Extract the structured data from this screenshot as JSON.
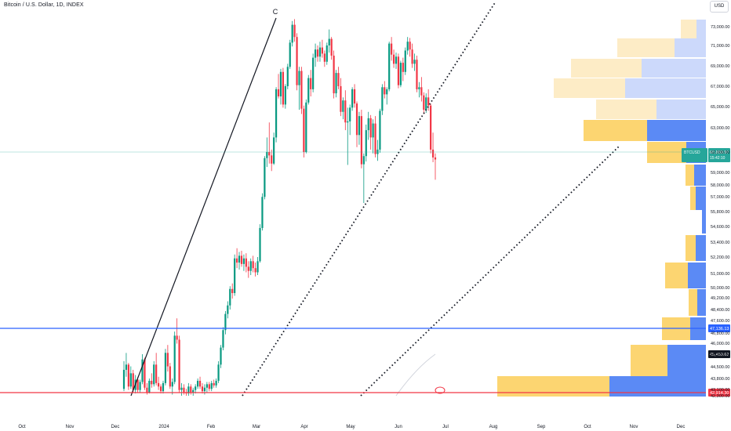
{
  "header": {
    "title": "Bitcoin / U.S. Dollar, 1D, INDEX",
    "currency": "USD"
  },
  "colors": {
    "up": "#089981",
    "down": "#f23645",
    "vp_up": "#fcd571",
    "vp_down": "#5b8af5",
    "vp_up_faded": "#fdecc6",
    "vp_down_faded": "#ccd9fb",
    "blue_line": "#2962ff",
    "red_line": "#f23645",
    "price_line": "#26a69a"
  },
  "chart_data": {
    "type": "candlestick",
    "symbol": "BTCUSD",
    "timeframe": "1D",
    "x_ticks": [
      "Oct",
      "Nov",
      "Dec",
      "2024",
      "Feb",
      "Mar",
      "Apr",
      "May",
      "Jun",
      "Jul",
      "Aug",
      "Sep",
      "Oct",
      "Nov",
      "Dec"
    ],
    "y_ticks": [
      "73,000.00",
      "71,000.00",
      "69,000.00",
      "67,000.00",
      "65,000.00",
      "63,000.00",
      "62,000.00",
      "59,000.00",
      "58,000.00",
      "57,000.00",
      "55,800.00",
      "54,600.00",
      "53,400.00",
      "52,200.00",
      "51,000.00",
      "50,000.00",
      "49,200.00",
      "48,400.00",
      "47,600.00",
      "46,800.00",
      "46,000.00",
      "45,200.00",
      "44,500.00",
      "43,800.00",
      "43,100.00",
      "42,300.00"
    ],
    "ylim": [
      42000,
      74500
    ],
    "last_price": "60,889.97",
    "countdown": "15:42:10",
    "price_label": "BTCUSD",
    "levels": [
      {
        "value": "47,136.13",
        "color": "#2962ff"
      },
      {
        "value": "45,459.62",
        "color": "#131722"
      },
      {
        "value": "42,914.30",
        "color": "#f23645"
      }
    ],
    "wave_label": "C",
    "candles": [
      [
        42900,
        44800,
        42700,
        44300
      ],
      [
        44300,
        45300,
        43900,
        44600
      ],
      [
        44600,
        44700,
        42800,
        43100
      ],
      [
        43100,
        44500,
        42900,
        44100
      ],
      [
        44100,
        44300,
        42600,
        42800
      ],
      [
        42800,
        44000,
        42500,
        43700
      ],
      [
        43700,
        43900,
        42600,
        42800
      ],
      [
        42800,
        43700,
        42600,
        43500
      ],
      [
        43500,
        45200,
        43300,
        44900
      ],
      [
        44900,
        45000,
        42800,
        43000
      ],
      [
        43000,
        43400,
        42400,
        42600
      ],
      [
        42600,
        43800,
        42500,
        43600
      ],
      [
        43600,
        44100,
        43000,
        43300
      ],
      [
        43300,
        44800,
        43100,
        44600
      ],
      [
        44600,
        45300,
        43200,
        43400
      ],
      [
        43400,
        43900,
        42800,
        43100
      ],
      [
        43100,
        43300,
        42500,
        42700
      ],
      [
        42700,
        43600,
        42500,
        43400
      ],
      [
        43400,
        45600,
        43200,
        45300
      ],
      [
        45300,
        45900,
        44200,
        44500
      ],
      [
        44500,
        44700,
        42900,
        43100
      ],
      [
        43100,
        43800,
        42400,
        43500
      ],
      [
        43500,
        46900,
        43300,
        46600
      ],
      [
        46600,
        47800,
        46000,
        46300
      ],
      [
        46300,
        46600,
        42600,
        42800
      ],
      [
        42800,
        43400,
        42200,
        43000
      ],
      [
        43000,
        43300,
        42400,
        42600
      ],
      [
        42600,
        42900,
        42300,
        42500
      ],
      [
        42500,
        43400,
        42300,
        43100
      ],
      [
        43100,
        43300,
        42400,
        42600
      ],
      [
        42600,
        43000,
        42300,
        42800
      ],
      [
        42800,
        43300,
        42500,
        43100
      ],
      [
        43100,
        43800,
        42900,
        43600
      ],
      [
        43600,
        43900,
        42900,
        43100
      ],
      [
        43100,
        43400,
        42500,
        42700
      ],
      [
        42700,
        43300,
        42400,
        43000
      ],
      [
        43000,
        43500,
        42600,
        43300
      ],
      [
        43300,
        43500,
        42700,
        42900
      ],
      [
        42900,
        43600,
        42700,
        43400
      ],
      [
        43400,
        43700,
        43000,
        43200
      ],
      [
        43200,
        43800,
        43000,
        43600
      ],
      [
        43600,
        44800,
        43400,
        44600
      ],
      [
        44600,
        45900,
        44400,
        45700
      ],
      [
        45700,
        47200,
        45500,
        47000
      ],
      [
        47000,
        48300,
        46700,
        48100
      ],
      [
        48100,
        49000,
        47800,
        48700
      ],
      [
        48700,
        50100,
        48400,
        49900
      ],
      [
        49900,
        50300,
        49200,
        49600
      ],
      [
        49600,
        52400,
        49400,
        52100
      ],
      [
        52100,
        52900,
        51400,
        51800
      ],
      [
        51800,
        52600,
        51300,
        52300
      ],
      [
        52300,
        52700,
        51500,
        51700
      ],
      [
        51700,
        52400,
        51200,
        52100
      ],
      [
        52100,
        52500,
        51100,
        51500
      ],
      [
        51500,
        51900,
        50700,
        51200
      ],
      [
        51200,
        52100,
        50900,
        51900
      ],
      [
        51900,
        52300,
        51100,
        51400
      ],
      [
        51400,
        51800,
        50800,
        51100
      ],
      [
        51100,
        52200,
        50900,
        51900
      ],
      [
        51900,
        54800,
        51800,
        54500
      ],
      [
        54500,
        57300,
        54300,
        57000
      ],
      [
        57000,
        61400,
        56800,
        61100
      ],
      [
        61100,
        62600,
        59800,
        62000
      ],
      [
        62000,
        63500,
        60300,
        61500
      ],
      [
        61500,
        62100,
        59200,
        60300
      ],
      [
        60300,
        62800,
        60100,
        62600
      ],
      [
        62600,
        66900,
        62400,
        66700
      ],
      [
        66700,
        68200,
        65800,
        66000
      ],
      [
        66000,
        68700,
        65200,
        68400
      ],
      [
        68400,
        68800,
        64900,
        65200
      ],
      [
        65200,
        67200,
        64800,
        67000
      ],
      [
        67000,
        69200,
        66700,
        68900
      ],
      [
        68900,
        71600,
        68700,
        71300
      ],
      [
        71300,
        73600,
        70900,
        73200
      ],
      [
        73200,
        73800,
        71400,
        71900
      ],
      [
        71900,
        72300,
        66600,
        67100
      ],
      [
        67100,
        68900,
        64700,
        68500
      ],
      [
        68500,
        68900,
        64300,
        64800
      ],
      [
        64800,
        65100,
        61200,
        62000
      ],
      [
        62000,
        65700,
        61800,
        65400
      ],
      [
        65400,
        68100,
        65200,
        67800
      ],
      [
        67800,
        68600,
        66000,
        66700
      ],
      [
        66700,
        70200,
        66400,
        69800
      ],
      [
        69800,
        71200,
        68900,
        70600
      ],
      [
        70600,
        71000,
        69400,
        69900
      ],
      [
        69900,
        71400,
        69400,
        70800
      ],
      [
        70800,
        71600,
        69800,
        70200
      ],
      [
        70200,
        70500,
        68900,
        69400
      ],
      [
        69400,
        71300,
        69100,
        71000
      ],
      [
        71000,
        72700,
        70300,
        71700
      ],
      [
        71700,
        71900,
        69600,
        70000
      ],
      [
        70000,
        70500,
        65800,
        66300
      ],
      [
        66300,
        68600,
        65900,
        68300
      ],
      [
        68300,
        68900,
        66700,
        67000
      ],
      [
        67000,
        67800,
        64100,
        64500
      ],
      [
        64500,
        65900,
        63800,
        65600
      ],
      [
        65600,
        66600,
        62900,
        63500
      ],
      [
        63500,
        64900,
        60100,
        63600
      ],
      [
        63600,
        65200,
        62700,
        64900
      ],
      [
        64900,
        66900,
        64600,
        66700
      ],
      [
        66700,
        67200,
        64900,
        65300
      ],
      [
        65300,
        65500,
        62200,
        62700
      ],
      [
        62700,
        64500,
        62300,
        64100
      ],
      [
        64100,
        64700,
        59600,
        60200
      ],
      [
        60200,
        61800,
        56500,
        61400
      ],
      [
        61400,
        63300,
        60600,
        62900
      ],
      [
        62900,
        64500,
        62500,
        63900
      ],
      [
        63900,
        64200,
        62100,
        62600
      ],
      [
        62600,
        63800,
        61800,
        63400
      ],
      [
        63400,
        64100,
        61200,
        61700
      ],
      [
        61700,
        62500,
        60700,
        62100
      ],
      [
        62100,
        64800,
        61900,
        64600
      ],
      [
        64600,
        67200,
        64200,
        66900
      ],
      [
        66900,
        67500,
        65800,
        66200
      ],
      [
        66200,
        66900,
        65200,
        66700
      ],
      [
        66700,
        71400,
        66500,
        71200
      ],
      [
        71200,
        71900,
        69500,
        70100
      ],
      [
        70100,
        70600,
        68800,
        69200
      ],
      [
        69200,
        70300,
        68700,
        69900
      ],
      [
        69900,
        70200,
        66800,
        67100
      ],
      [
        67100,
        69500,
        66900,
        69300
      ],
      [
        69300,
        69800,
        67500,
        68400
      ],
      [
        68400,
        70800,
        68100,
        70500
      ],
      [
        70500,
        71900,
        70100,
        71400
      ],
      [
        71400,
        71800,
        69900,
        70600
      ],
      [
        70600,
        71200,
        68800,
        69200
      ],
      [
        69200,
        70200,
        68500,
        69600
      ],
      [
        69600,
        70000,
        66400,
        66700
      ],
      [
        66700,
        67400,
        65900,
        66900
      ],
      [
        66900,
        67900,
        65500,
        66100
      ],
      [
        66100,
        66400,
        64300,
        64700
      ],
      [
        64700,
        66300,
        64400,
        65900
      ],
      [
        65900,
        66700,
        64600,
        65100
      ],
      [
        65100,
        65300,
        61800,
        62100
      ],
      [
        62100,
        62800,
        60500,
        61200
      ],
      [
        61200,
        61800,
        58400,
        60900
      ]
    ]
  }
}
